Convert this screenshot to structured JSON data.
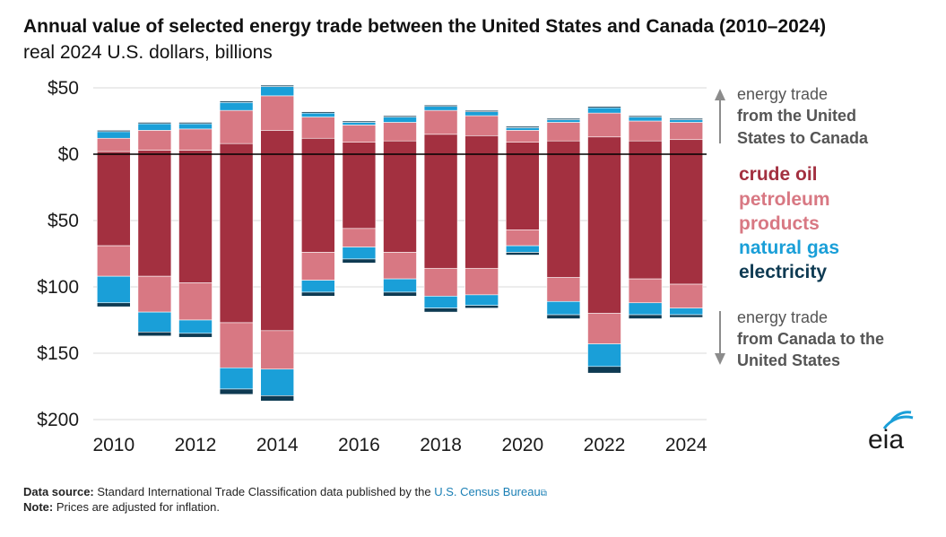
{
  "header": {
    "title": "Annual value of selected energy trade between the United States and Canada (2010–2024)",
    "subtitle": "real 2024 U.S. dollars, billions"
  },
  "annotations": {
    "top_line1": "energy trade",
    "top_line2": "from the United",
    "top_line3": "States to Canada",
    "bottom_line1": "energy trade",
    "bottom_line2": "from Canada to the",
    "bottom_line3": "United States"
  },
  "legend": [
    {
      "label": "crude oil",
      "color": "#a33040"
    },
    {
      "label": "petroleum",
      "color": "#d87883"
    },
    {
      "label": "products",
      "color": "#d87883"
    },
    {
      "label": "natural gas",
      "color": "#1a9fd8"
    },
    {
      "label": "electricity",
      "color": "#0e3a52"
    }
  ],
  "footer": {
    "source_label": "Data source:",
    "source_text": "Standard International Trade Classification data published by the",
    "source_link": "U.S. Census Bureau",
    "note_label": "Note:",
    "note_text": "Prices are adjusted for inflation."
  },
  "logo": {
    "text": "eia"
  },
  "colors": {
    "crude_oil": "#a33040",
    "petroleum_products": "#d87883",
    "natural_gas": "#1a9fd8",
    "electricity": "#0e3a52",
    "grid": "#d9d9d9",
    "zero_line": "#000000"
  },
  "chart_data": {
    "type": "bar",
    "stacked": true,
    "title": "Annual value of selected energy trade between the United States and Canada (2010–2024)",
    "ylabel": "real 2024 U.S. dollars, billions",
    "ylim": [
      -200,
      50
    ],
    "yticks": [
      50,
      0,
      -50,
      -100,
      -150,
      -200
    ],
    "ytick_labels": [
      "$50",
      "$0",
      "$50",
      "$100",
      "$150",
      "$200"
    ],
    "x": [
      2010,
      2011,
      2012,
      2013,
      2014,
      2015,
      2016,
      2017,
      2018,
      2019,
      2020,
      2021,
      2022,
      2023,
      2024
    ],
    "xtick_labels": [
      "2010",
      "2012",
      "2014",
      "2016",
      "2018",
      "2020",
      "2022",
      "2024"
    ],
    "grid": true,
    "legend_position": "right",
    "exports_to_canada": {
      "series": [
        {
          "name": "crude oil",
          "values": [
            2,
            3,
            3,
            8,
            18,
            12,
            9,
            10,
            15,
            14,
            9,
            10,
            13,
            10,
            11
          ]
        },
        {
          "name": "petroleum products",
          "values": [
            10,
            15,
            16,
            25,
            26,
            16,
            13,
            14,
            18,
            15,
            9,
            14,
            18,
            15,
            13
          ]
        },
        {
          "name": "natural gas",
          "values": [
            5,
            5,
            4,
            6,
            7,
            3,
            2,
            4,
            3,
            3,
            2,
            2,
            4,
            3,
            2
          ]
        },
        {
          "name": "electricity",
          "values": [
            1,
            1,
            1,
            1,
            1,
            1,
            1,
            1,
            1,
            1,
            1,
            1,
            1,
            1,
            1
          ]
        }
      ]
    },
    "imports_from_canada": {
      "series": [
        {
          "name": "crude oil",
          "values": [
            -69,
            -92,
            -97,
            -127,
            -133,
            -74,
            -56,
            -74,
            -86,
            -86,
            -57,
            -93,
            -120,
            -94,
            -98
          ]
        },
        {
          "name": "petroleum products",
          "values": [
            -23,
            -27,
            -28,
            -34,
            -29,
            -21,
            -14,
            -20,
            -21,
            -20,
            -12,
            -18,
            -23,
            -18,
            -18
          ]
        },
        {
          "name": "natural gas",
          "values": [
            -20,
            -15,
            -10,
            -16,
            -20,
            -9,
            -9,
            -10,
            -9,
            -8,
            -5,
            -10,
            -17,
            -9,
            -5
          ]
        },
        {
          "name": "electricity",
          "values": [
            -3,
            -3,
            -3,
            -4,
            -4,
            -3,
            -3,
            -3,
            -3,
            -2,
            -2,
            -3,
            -5,
            -3,
            -2
          ]
        }
      ]
    }
  }
}
